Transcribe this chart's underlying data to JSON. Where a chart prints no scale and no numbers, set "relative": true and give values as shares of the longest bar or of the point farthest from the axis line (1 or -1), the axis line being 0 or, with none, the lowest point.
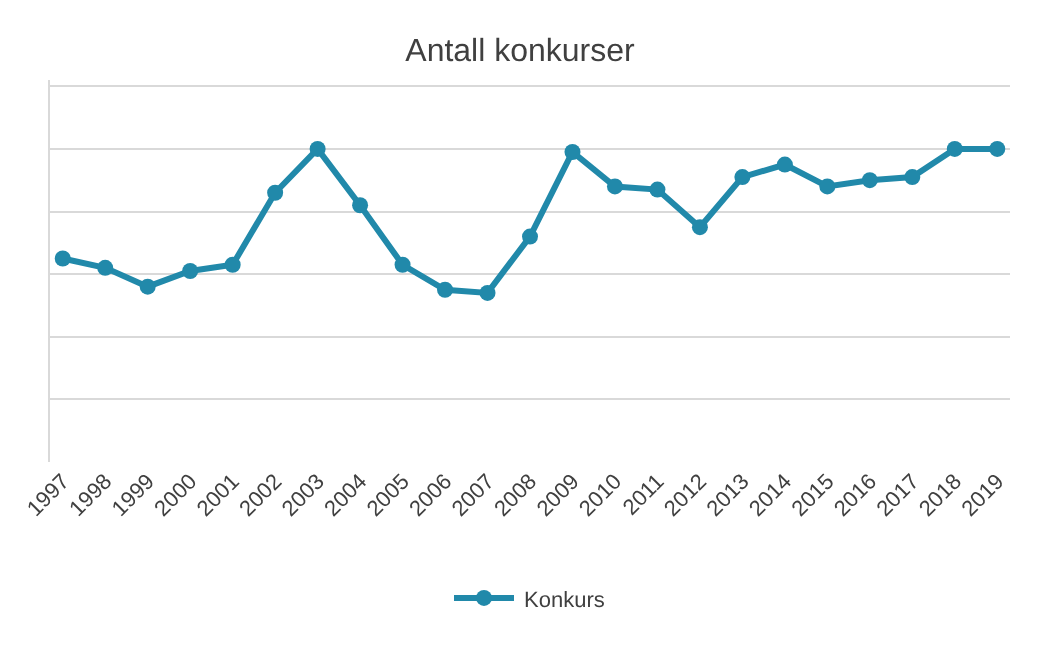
{
  "chart_data": {
    "type": "line",
    "title": "Antall konkurser",
    "relative": true,
    "categories": [
      "1997",
      "1998",
      "1999",
      "2000",
      "2001",
      "2002",
      "2003",
      "2004",
      "2005",
      "2006",
      "2007",
      "2008",
      "2009",
      "2010",
      "2011",
      "2012",
      "2013",
      "2014",
      "2015",
      "2016",
      "2017",
      "2018",
      "2019"
    ],
    "series": [
      {
        "name": "Konkurs",
        "color": "#2189aa",
        "values": [
          0.65,
          0.62,
          0.56,
          0.61,
          0.63,
          0.86,
          1.0,
          0.82,
          0.63,
          0.55,
          0.54,
          0.72,
          0.99,
          0.88,
          0.87,
          0.75,
          0.91,
          0.95,
          0.88,
          0.9,
          0.91,
          1.0,
          1.0
        ]
      }
    ],
    "grid": "y",
    "legend": "bottom",
    "marker": "circle",
    "line_style": "solid"
  }
}
